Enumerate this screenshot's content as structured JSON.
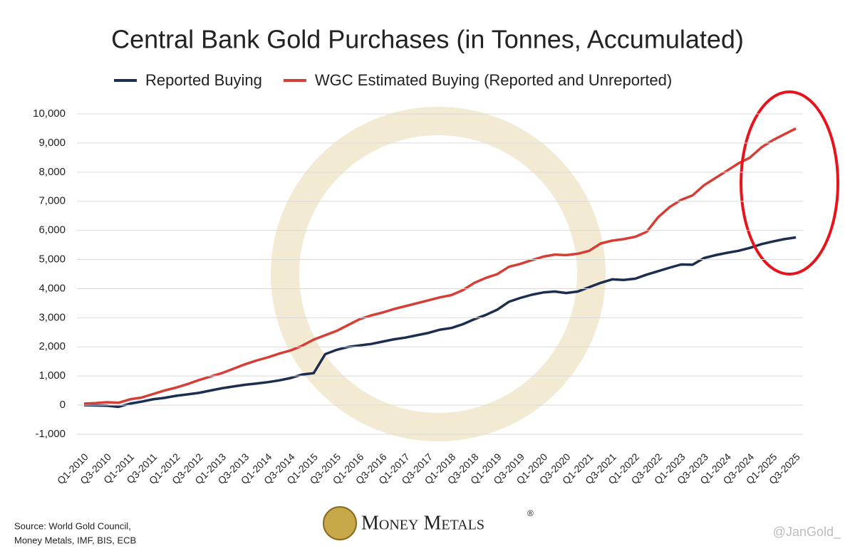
{
  "chart_data": {
    "type": "line",
    "title": "Central Bank Gold Purchases (in Tonnes, Accumulated)",
    "source": "Source: World Gold Council,",
    "source_2": "Money Metals, IMF, BIS, ECB",
    "logo": "Money Metals",
    "logo_mark": "®",
    "credit": "@JanGold_",
    "categories": [
      "Q1-2010",
      null,
      "Q3-2010",
      null,
      "Q1-2011",
      null,
      "Q3-2011",
      null,
      "Q1-2012",
      null,
      "Q3-2012",
      null,
      "Q1-2013",
      null,
      "Q3-2013",
      null,
      "Q1-2014",
      null,
      "Q3-2014",
      null,
      "Q1-2015",
      null,
      "Q3-2015",
      null,
      "Q1-2016",
      null,
      "Q3-2016",
      null,
      "Q1-2017",
      null,
      "Q3-2017",
      null,
      "Q1-2018",
      null,
      "Q3-2018",
      null,
      "Q1-2019",
      null,
      "Q3-2019",
      null,
      "Q1-2020",
      null,
      "Q3-2020",
      null,
      "Q1-2021",
      null,
      "Q3-2021",
      null,
      "Q1-2022",
      null,
      "Q3-2022",
      null,
      "Q1-2023",
      null,
      "Q3-2023",
      null,
      "Q1-2024",
      null,
      "Q3-2024",
      null,
      "Q1-2025",
      null,
      "Q3-2025"
    ],
    "series": [
      {
        "name": "Reported Buying",
        "color": "#1b2e4f",
        "values": [
          0,
          -10,
          -20,
          -60,
          50,
          120,
          200,
          250,
          320,
          370,
          420,
          500,
          580,
          640,
          700,
          740,
          790,
          850,
          930,
          1050,
          1100,
          1750,
          1900,
          2000,
          2050,
          2100,
          2180,
          2260,
          2320,
          2400,
          2480,
          2590,
          2650,
          2780,
          2950,
          3100,
          3280,
          3550,
          3680,
          3790,
          3870,
          3900,
          3850,
          3900,
          4050,
          4200,
          4320,
          4300,
          4340,
          4480,
          4600,
          4720,
          4830,
          4820,
          5050,
          5150,
          5230,
          5300,
          5400,
          5530,
          5620,
          5700,
          5760
        ]
      },
      {
        "name": "WGC Estimated Buying (Reported and Unreported)",
        "color": "#d63d34",
        "values": [
          50,
          70,
          100,
          80,
          200,
          260,
          380,
          500,
          600,
          720,
          860,
          980,
          1100,
          1250,
          1400,
          1530,
          1640,
          1770,
          1880,
          2040,
          2250,
          2400,
          2550,
          2750,
          2950,
          3080,
          3180,
          3300,
          3400,
          3500,
          3600,
          3700,
          3780,
          3950,
          4200,
          4370,
          4500,
          4750,
          4850,
          4980,
          5100,
          5170,
          5150,
          5200,
          5300,
          5550,
          5650,
          5700,
          5780,
          5950,
          6450,
          6800,
          7050,
          7200,
          7550,
          7800,
          8050,
          8300,
          8500,
          8850,
          9100,
          9300,
          9500
        ]
      }
    ],
    "ylim": [
      -1000,
      10000
    ],
    "yticks": [
      {
        "value": -1000,
        "label": "-1,000"
      },
      0,
      {
        "value": 1000,
        "label": "1,000"
      },
      {
        "value": 2000,
        "label": "2,000"
      },
      {
        "value": 3000,
        "label": "3,000"
      },
      {
        "value": 4000,
        "label": "4,000"
      },
      {
        "value": 5000,
        "label": "5,000"
      },
      {
        "value": 6000,
        "label": "6,000"
      },
      {
        "value": 7000,
        "label": "7,000"
      },
      {
        "value": 8000,
        "label": "8,000"
      },
      {
        "value": 9000,
        "label": "9,000"
      },
      {
        "value": 10000,
        "label": "10,000"
      }
    ],
    "grid": true,
    "legend": "top"
  }
}
